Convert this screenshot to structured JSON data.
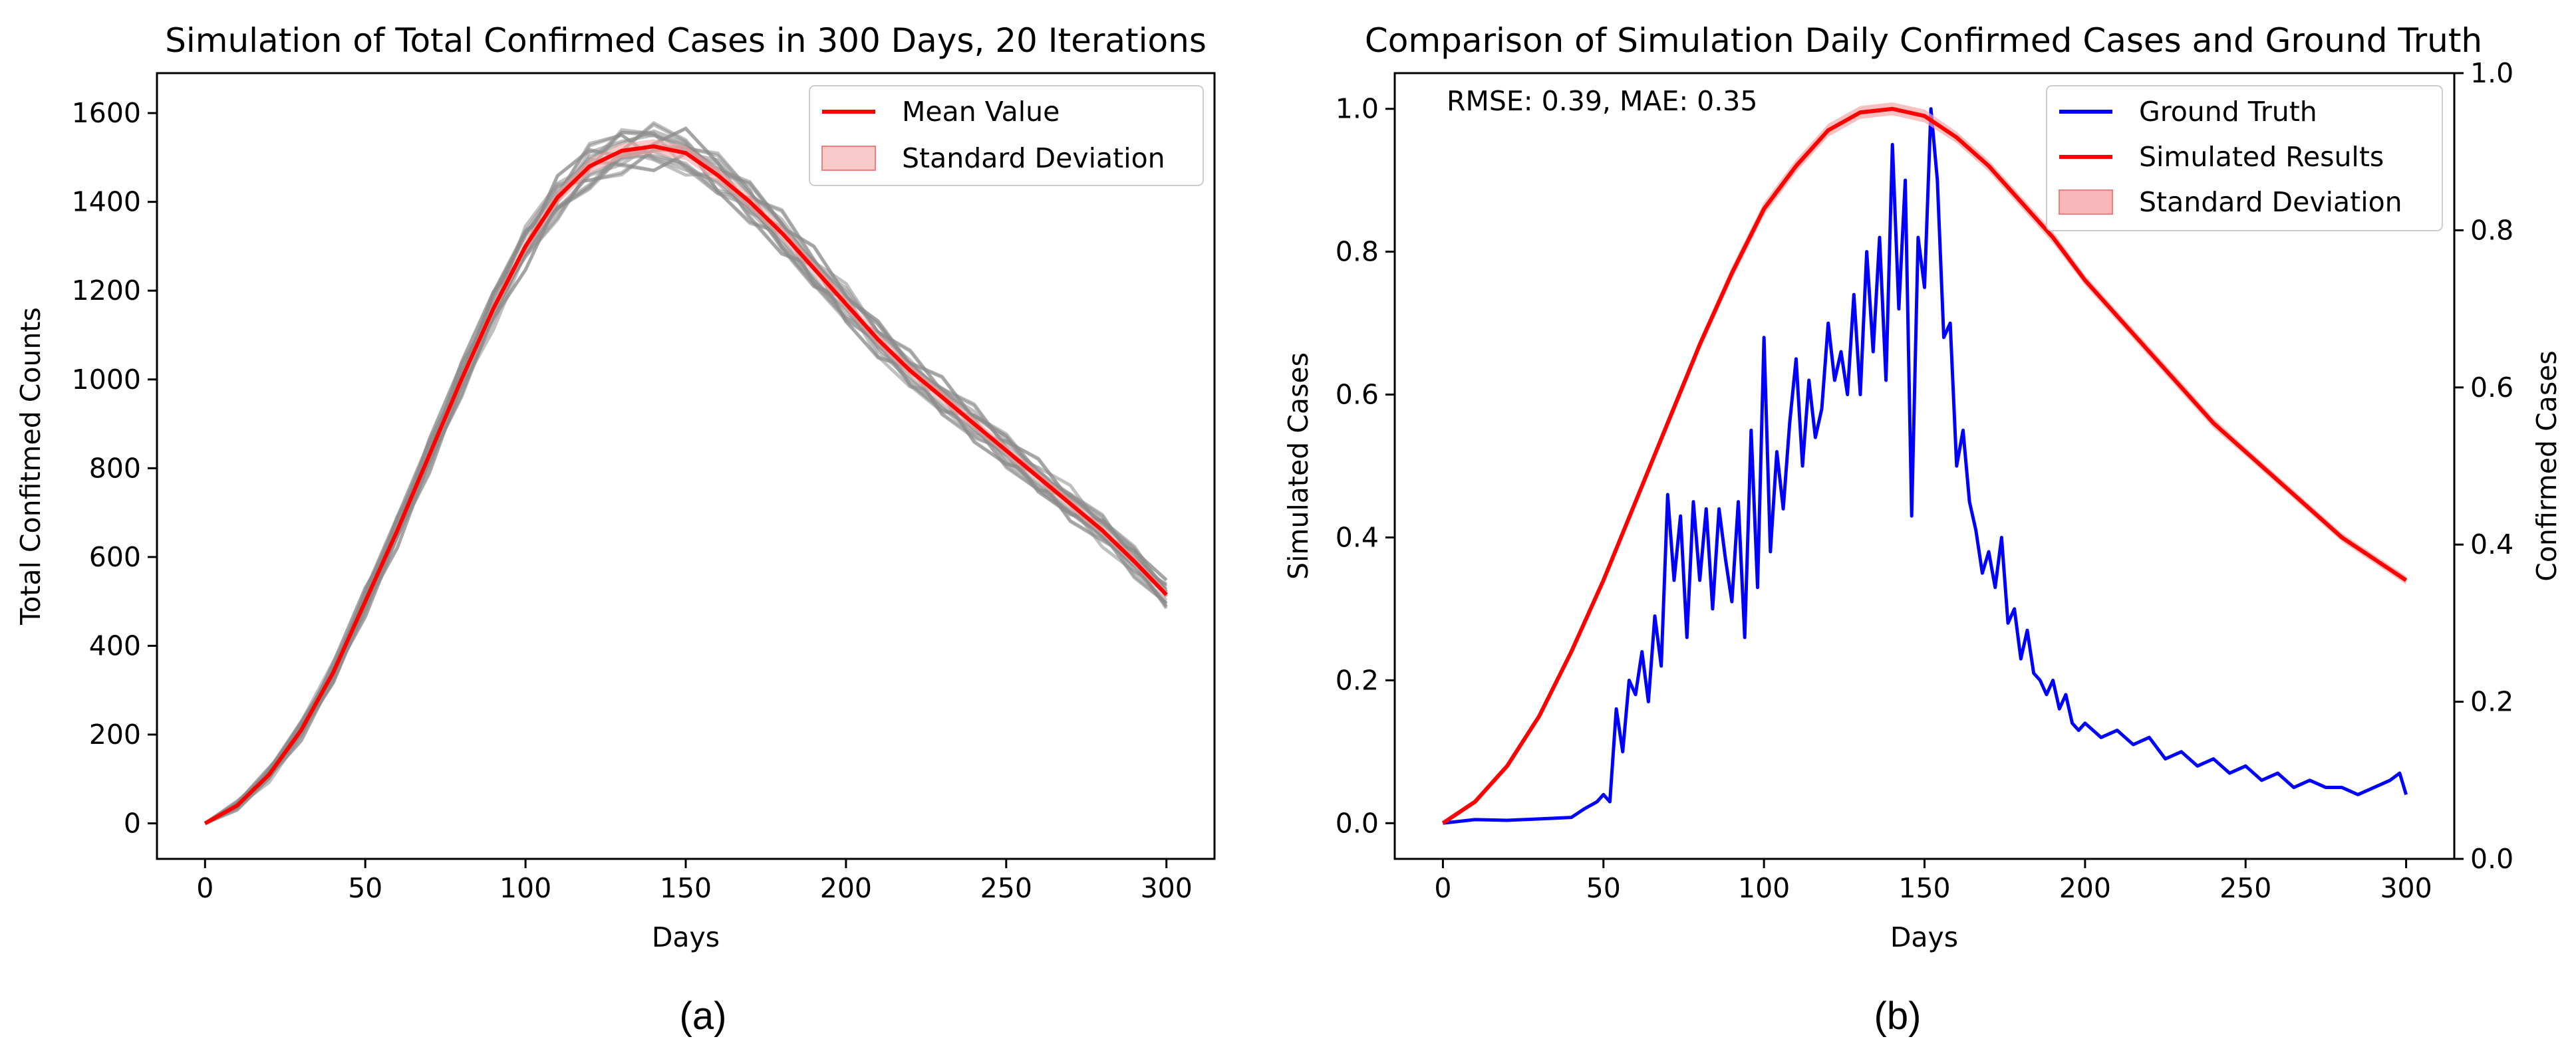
{
  "chart_data": [
    {
      "type": "line",
      "panel_label": "(a)",
      "title": "Simulation of Total Confirmed Cases in 300 Days, 20 Iterations",
      "xlabel": "Days",
      "ylabel": "Total Confitmed Counts",
      "xlim": [
        -15,
        315
      ],
      "ylim": [
        -80,
        1690
      ],
      "xticks": [
        0,
        50,
        100,
        150,
        200,
        250,
        300
      ],
      "yticks": [
        0,
        200,
        400,
        600,
        800,
        1000,
        1200,
        1400,
        1600
      ],
      "legend_position": "top-right",
      "legend": [
        "Mean Value",
        "Standard Deviation"
      ],
      "colors": {
        "mean": "#ff0000",
        "std_fill": "#f4a6a6",
        "iterations": "#8c8c8c"
      },
      "iterations": 20,
      "x": [
        0,
        10,
        20,
        30,
        40,
        50,
        60,
        70,
        80,
        90,
        100,
        110,
        120,
        130,
        140,
        150,
        160,
        170,
        180,
        190,
        200,
        210,
        220,
        230,
        240,
        250,
        260,
        270,
        280,
        290,
        300
      ],
      "series": [
        {
          "name": "Mean Value",
          "values": [
            0,
            40,
            110,
            210,
            340,
            500,
            660,
            830,
            1000,
            1160,
            1300,
            1410,
            1480,
            1515,
            1525,
            1510,
            1460,
            1400,
            1330,
            1250,
            1170,
            1090,
            1020,
            960,
            900,
            840,
            780,
            720,
            660,
            590,
            515
          ]
        }
      ],
      "std": [
        0,
        3,
        5,
        7,
        8,
        10,
        11,
        12,
        13,
        14,
        15,
        15,
        16,
        16,
        16,
        16,
        15,
        15,
        15,
        14,
        14,
        14,
        13,
        13,
        13,
        12,
        12,
        12,
        11,
        11,
        10
      ]
    },
    {
      "type": "line",
      "panel_label": "(b)",
      "title": "Comparison of Simulation Daily Confirmed Cases and Ground Truth",
      "xlabel": "Days",
      "ylabel": "Simulated Cases",
      "y2label": "Confirmed Cases",
      "annotation": "RMSE: 0.39, MAE: 0.35",
      "xlim": [
        -15,
        315
      ],
      "ylim": [
        -0.05,
        1.05
      ],
      "y2lim": [
        0.0,
        1.0
      ],
      "xticks": [
        0,
        50,
        100,
        150,
        200,
        250,
        300
      ],
      "yticks": [
        0.0,
        0.2,
        0.4,
        0.6,
        0.8,
        1.0
      ],
      "y2ticks": [
        0.0,
        0.2,
        0.4,
        0.6,
        0.8,
        1.0
      ],
      "legend_position": "top-right",
      "legend": [
        "Ground Truth",
        "Simulated Results",
        "Standard Deviation"
      ],
      "colors": {
        "ground_truth": "#0000ff",
        "simulated": "#ff0000",
        "std_fill": "#f4a6a6"
      },
      "x_simulated": [
        0,
        10,
        20,
        30,
        40,
        50,
        60,
        70,
        80,
        90,
        100,
        110,
        120,
        130,
        140,
        150,
        160,
        170,
        180,
        190,
        200,
        210,
        220,
        230,
        240,
        250,
        260,
        270,
        280,
        290,
        300
      ],
      "simulated_values": [
        0.0,
        0.03,
        0.08,
        0.15,
        0.24,
        0.34,
        0.45,
        0.56,
        0.67,
        0.77,
        0.86,
        0.92,
        0.97,
        0.995,
        1.0,
        0.99,
        0.96,
        0.92,
        0.87,
        0.82,
        0.76,
        0.71,
        0.66,
        0.61,
        0.56,
        0.52,
        0.48,
        0.44,
        0.4,
        0.37,
        0.34
      ],
      "simulated_std": [
        0.0,
        0.002,
        0.003,
        0.004,
        0.005,
        0.006,
        0.007,
        0.008,
        0.008,
        0.009,
        0.009,
        0.009,
        0.009,
        0.009,
        0.009,
        0.009,
        0.008,
        0.008,
        0.008,
        0.008,
        0.007,
        0.007,
        0.007,
        0.007,
        0.007,
        0.006,
        0.006,
        0.006,
        0.006,
        0.006,
        0.006
      ],
      "x_ground_truth": [
        0,
        10,
        20,
        30,
        40,
        44,
        48,
        50,
        52,
        54,
        56,
        58,
        60,
        62,
        64,
        66,
        68,
        70,
        72,
        74,
        76,
        78,
        80,
        82,
        84,
        86,
        88,
        90,
        92,
        94,
        96,
        98,
        100,
        102,
        104,
        106,
        108,
        110,
        112,
        114,
        116,
        118,
        120,
        122,
        124,
        126,
        128,
        130,
        132,
        134,
        136,
        138,
        140,
        142,
        144,
        146,
        148,
        150,
        152,
        154,
        156,
        158,
        160,
        162,
        164,
        166,
        168,
        170,
        172,
        174,
        176,
        178,
        180,
        182,
        184,
        186,
        188,
        190,
        192,
        194,
        196,
        198,
        200,
        205,
        210,
        215,
        220,
        225,
        230,
        235,
        240,
        245,
        250,
        255,
        260,
        265,
        270,
        275,
        280,
        285,
        290,
        295,
        298,
        300
      ],
      "ground_truth_values": [
        0.0,
        0.005,
        0.004,
        0.006,
        0.008,
        0.02,
        0.03,
        0.04,
        0.03,
        0.16,
        0.1,
        0.2,
        0.18,
        0.24,
        0.17,
        0.29,
        0.22,
        0.46,
        0.34,
        0.43,
        0.26,
        0.45,
        0.34,
        0.44,
        0.3,
        0.44,
        0.37,
        0.31,
        0.45,
        0.26,
        0.55,
        0.33,
        0.68,
        0.38,
        0.52,
        0.44,
        0.56,
        0.65,
        0.5,
        0.62,
        0.54,
        0.58,
        0.7,
        0.62,
        0.66,
        0.6,
        0.74,
        0.6,
        0.8,
        0.66,
        0.82,
        0.62,
        0.95,
        0.72,
        0.9,
        0.43,
        0.82,
        0.75,
        1.0,
        0.9,
        0.68,
        0.7,
        0.5,
        0.55,
        0.45,
        0.41,
        0.35,
        0.38,
        0.33,
        0.4,
        0.28,
        0.3,
        0.23,
        0.27,
        0.21,
        0.2,
        0.18,
        0.2,
        0.16,
        0.18,
        0.14,
        0.13,
        0.14,
        0.12,
        0.13,
        0.11,
        0.12,
        0.09,
        0.1,
        0.08,
        0.09,
        0.07,
        0.08,
        0.06,
        0.07,
        0.05,
        0.06,
        0.05,
        0.05,
        0.04,
        0.05,
        0.06,
        0.07,
        0.04
      ]
    }
  ]
}
